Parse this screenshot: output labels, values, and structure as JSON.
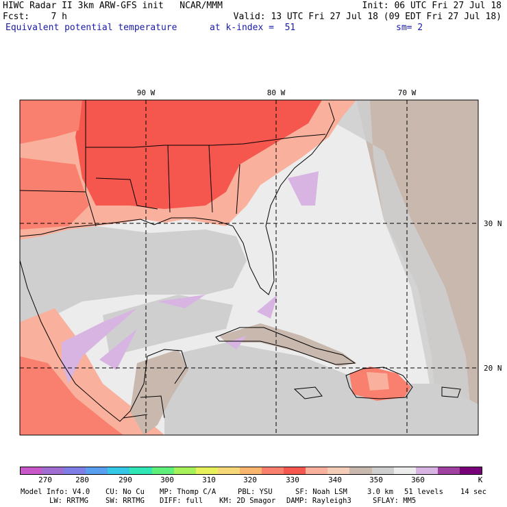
{
  "header": {
    "line1_left": "HIWC Radar II 3km ARW-GFS init   NCAR/MMM",
    "line1_right": "Init: 06 UTC Fri 27 Jul 18",
    "line2_left": "Fcst:    7 h",
    "line2_right": "Valid: 13 UTC Fri 27 Jul 18 (09 EDT Fri 27 Jul 18)",
    "field_name": "Equivalent potential temperature",
    "level": "at k-index =  51",
    "smoothing": "sm= 2"
  },
  "map": {
    "lon_labels": [
      "90 W",
      "80 W",
      "70 W"
    ],
    "lat_labels": [
      "30 N",
      "20 N"
    ],
    "colors": {
      "warm_red": "#f5574e",
      "warm_mid": "#f9806f",
      "warm_pale": "#f9b09c",
      "tan": "#c8b8ae",
      "gray": "#cfcfcf",
      "light": "#ececec",
      "lilac": "#d8b4e2"
    }
  },
  "colorbar": {
    "colors": [
      "#c858c8",
      "#9f6ed0",
      "#7e7ee6",
      "#5a9ef0",
      "#34c8e6",
      "#30e6b4",
      "#5ef07a",
      "#a6f05a",
      "#e6f05a",
      "#f6d878",
      "#f9b46e",
      "#f9806f",
      "#f5574e",
      "#f9b09c",
      "#f3cdb8",
      "#c8b8ae",
      "#cfcfcf",
      "#ececec",
      "#d8b4e2",
      "#a040a0",
      "#780078"
    ],
    "labels": [
      "270",
      "280",
      "290",
      "300",
      "310",
      "320",
      "330",
      "340",
      "350",
      "360",
      "K"
    ]
  },
  "footer": {
    "line1": [
      "Model Info: V4.0",
      "CU: No Cu",
      "MP: Thomp C/A",
      "PBL: YSU",
      "SF: Noah LSM",
      "3.0 km",
      "51 levels",
      "14 sec"
    ],
    "line2": [
      "LW: RRTMG",
      "SW: RRTMG",
      "DIFF: full",
      "KM: 2D Smagor",
      "DAMP: Rayleigh3",
      "SFLAY: MM5"
    ]
  }
}
